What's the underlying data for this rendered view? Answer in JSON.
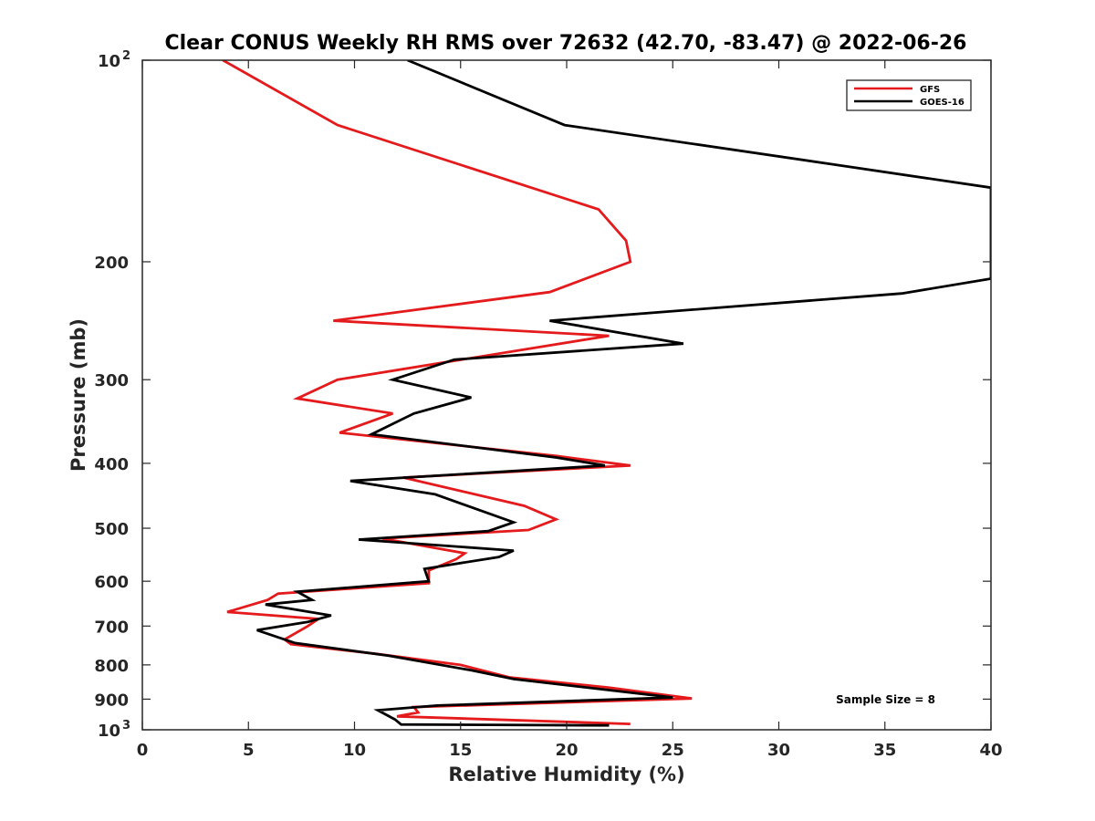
{
  "chart_data": {
    "type": "line",
    "title": "Clear CONUS Weekly RH RMS over 72632 (42.70, -83.47) @ 2022-06-26",
    "xlabel": "Relative Humidity (%)",
    "ylabel": "Pressure (mb)",
    "xlim": [
      0,
      40
    ],
    "ylim": [
      100,
      1000
    ],
    "y_scale": "log",
    "y_reversed": true,
    "x_ticks": [
      "0",
      "5",
      "10",
      "15",
      "20",
      "25",
      "30",
      "35",
      "40"
    ],
    "y_ticks": [
      {
        "value": 100,
        "label": "10",
        "sup": "2"
      },
      {
        "value": 200,
        "label": "200",
        "sup": ""
      },
      {
        "value": 300,
        "label": "300",
        "sup": ""
      },
      {
        "value": 400,
        "label": "400",
        "sup": ""
      },
      {
        "value": 500,
        "label": "500",
        "sup": ""
      },
      {
        "value": 600,
        "label": "600",
        "sup": ""
      },
      {
        "value": 700,
        "label": "700",
        "sup": ""
      },
      {
        "value": 800,
        "label": "800",
        "sup": ""
      },
      {
        "value": 900,
        "label": "900",
        "sup": ""
      },
      {
        "value": 1000,
        "label": "10",
        "sup": "3"
      }
    ],
    "legend_position": "top-right",
    "annotation": "Sample Size = 8",
    "series": [
      {
        "name": "GFS",
        "color": "#e41a1c",
        "points": [
          [
            3.8,
            100
          ],
          [
            9.2,
            125
          ],
          [
            21.5,
            167
          ],
          [
            22.8,
            186
          ],
          [
            23.0,
            200
          ],
          [
            19.2,
            222
          ],
          [
            9.0,
            245
          ],
          [
            22.0,
            258
          ],
          [
            9.2,
            300
          ],
          [
            7.3,
            320
          ],
          [
            11.8,
            337
          ],
          [
            9.3,
            360
          ],
          [
            19.5,
            390
          ],
          [
            23.0,
            403
          ],
          [
            12.3,
            420
          ],
          [
            18.0,
            463
          ],
          [
            19.5,
            485
          ],
          [
            18.2,
            503
          ],
          [
            11.3,
            518
          ],
          [
            15.2,
            545
          ],
          [
            14.8,
            556
          ],
          [
            13.5,
            578
          ],
          [
            13.5,
            604
          ],
          [
            6.4,
            626
          ],
          [
            5.9,
            640
          ],
          [
            4.0,
            667
          ],
          [
            8.3,
            683
          ],
          [
            7.8,
            700
          ],
          [
            6.7,
            733
          ],
          [
            7.0,
            745
          ],
          [
            11.0,
            770
          ],
          [
            15.0,
            800
          ],
          [
            17.3,
            835
          ],
          [
            22.0,
            865
          ],
          [
            25.9,
            898
          ],
          [
            12.8,
            925
          ],
          [
            13.0,
            942
          ],
          [
            12.0,
            955
          ],
          [
            23.0,
            980
          ]
        ]
      },
      {
        "name": "GOES-16",
        "color": "#000000",
        "points": [
          [
            12.5,
            100
          ],
          [
            19.9,
            125
          ],
          [
            32.5,
            143
          ],
          [
            40.0,
            155
          ],
          [
            40.0,
            212
          ],
          [
            35.8,
            223
          ],
          [
            19.2,
            245
          ],
          [
            25.5,
            265
          ],
          [
            14.7,
            280
          ],
          [
            11.8,
            300
          ],
          [
            15.5,
            319
          ],
          [
            12.8,
            337
          ],
          [
            10.8,
            362
          ],
          [
            19.5,
            392
          ],
          [
            21.8,
            403
          ],
          [
            9.8,
            425
          ],
          [
            13.8,
            445
          ],
          [
            17.5,
            490
          ],
          [
            16.3,
            505
          ],
          [
            10.2,
            520
          ],
          [
            17.5,
            540
          ],
          [
            16.8,
            552
          ],
          [
            13.3,
            575
          ],
          [
            13.5,
            600
          ],
          [
            7.3,
            622
          ],
          [
            8.0,
            640
          ],
          [
            5.8,
            650
          ],
          [
            8.9,
            675
          ],
          [
            7.8,
            690
          ],
          [
            5.4,
            710
          ],
          [
            7.2,
            742
          ],
          [
            11.6,
            775
          ],
          [
            15.5,
            815
          ],
          [
            17.5,
            840
          ],
          [
            25.0,
            895
          ],
          [
            13.9,
            920
          ],
          [
            11.1,
            935
          ],
          [
            11.9,
            965
          ],
          [
            12.2,
            982
          ],
          [
            22.0,
            985
          ]
        ]
      }
    ]
  }
}
